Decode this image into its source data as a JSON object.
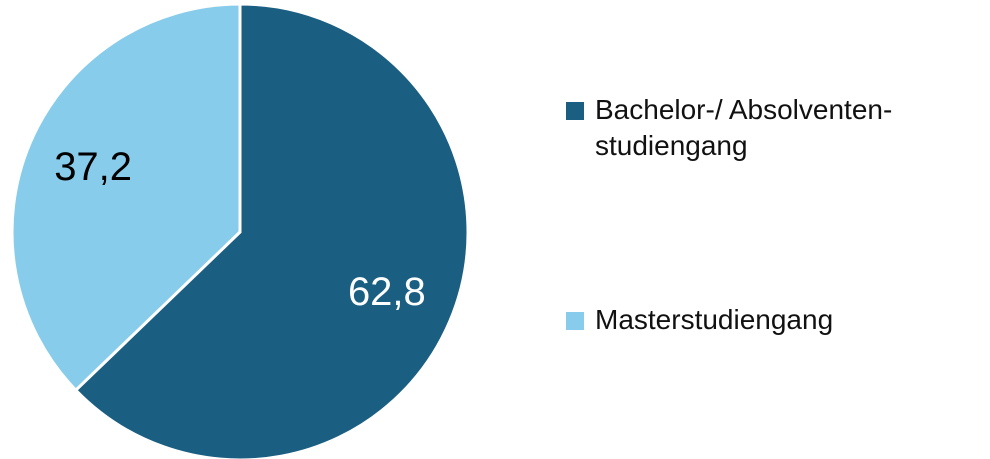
{
  "chart_data": {
    "type": "pie",
    "categories": [
      "Bachelor-/ Absolventen-studiengang",
      "Masterstudiengang"
    ],
    "values": [
      62.8,
      37.2
    ],
    "value_labels": [
      "62,8",
      "37,2"
    ],
    "colors": [
      "#1a5e82",
      "#87cdeb"
    ],
    "label_colors": [
      "#ffffff",
      "#000000"
    ],
    "legend": "right"
  }
}
